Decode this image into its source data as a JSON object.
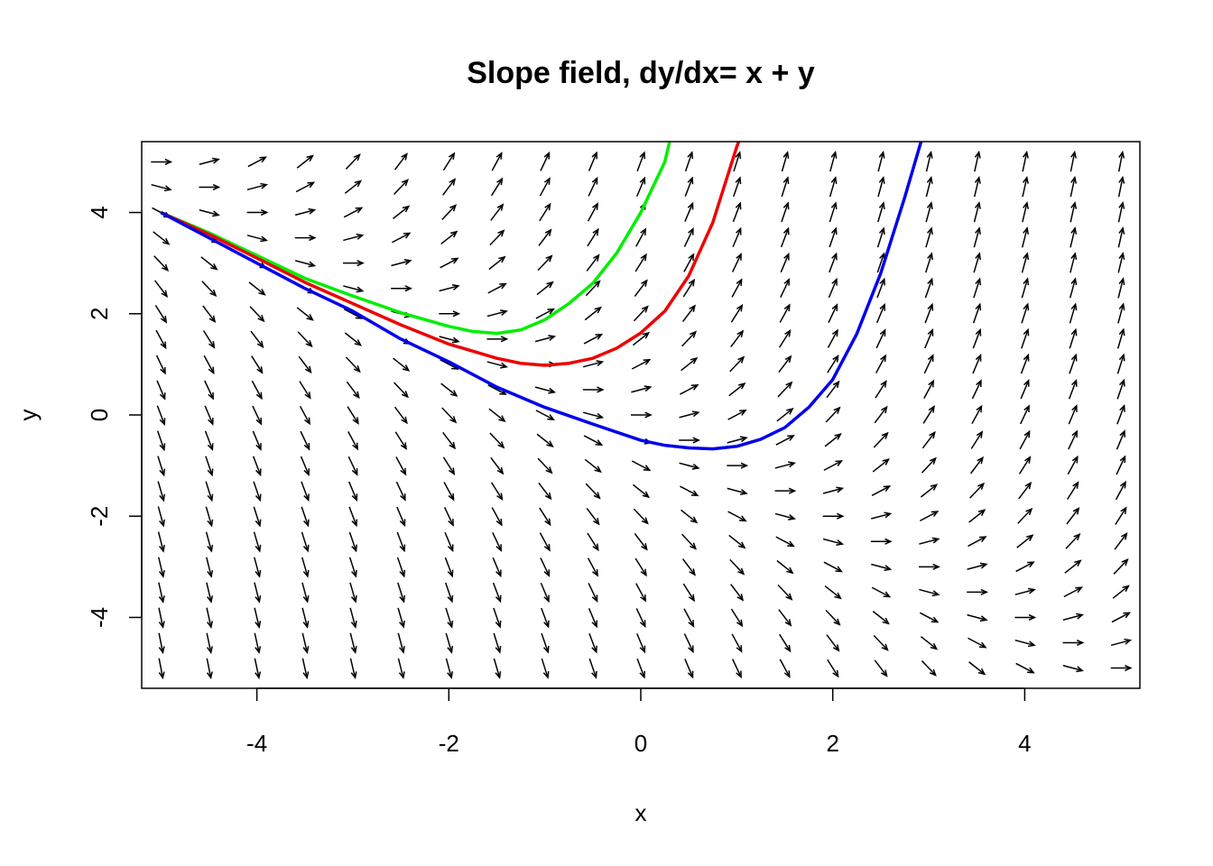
{
  "chart_data": {
    "type": "line",
    "title": "Slope field, dy/dx= x + y",
    "xlabel": "x",
    "ylabel": "y",
    "xlim": [
      -5.2,
      5.2
    ],
    "ylim": [
      -5.4,
      5.4
    ],
    "xticks": [
      -4,
      -2,
      0,
      2,
      4
    ],
    "yticks": [
      -4,
      -2,
      0,
      2,
      4
    ],
    "grid": false,
    "legend": "none",
    "slope_field": {
      "equation": "dy/dx = x + y",
      "x_from": -5,
      "x_to": 5,
      "x_step": 0.5,
      "y_from": -5,
      "y_to": 5,
      "y_step": 0.5,
      "color": "#000000"
    },
    "series": [
      {
        "color": "#00ee00",
        "x": [
          -5,
          -4.5,
          -4,
          -3.5,
          -3,
          -2.5,
          -2,
          -1.75,
          -1.5,
          -1.25,
          -1,
          -0.75,
          -0.5,
          -0.25,
          0,
          0.25,
          0.3
        ],
        "y": [
          4.0,
          3.6,
          3.15,
          2.7,
          2.35,
          2.02,
          1.75,
          1.65,
          1.61,
          1.68,
          1.88,
          2.2,
          2.6,
          3.2,
          4.0,
          5.0,
          5.4
        ]
      },
      {
        "color": "#ee0000",
        "x": [
          -5,
          -4.5,
          -4,
          -3.5,
          -3,
          -2.5,
          -2,
          -1.5,
          -1.25,
          -1,
          -0.75,
          -0.5,
          -0.25,
          0,
          0.25,
          0.5,
          0.75,
          1,
          1.02
        ],
        "y": [
          4.0,
          3.57,
          3.1,
          2.62,
          2.2,
          1.78,
          1.4,
          1.12,
          1.02,
          0.98,
          1.02,
          1.12,
          1.32,
          1.62,
          2.05,
          2.75,
          3.8,
          5.3,
          5.4
        ]
      },
      {
        "color": "#0000ee",
        "x": [
          -5,
          -4.5,
          -4,
          -3.5,
          -3,
          -2.5,
          -2,
          -1.5,
          -1,
          -0.5,
          0,
          0.25,
          0.5,
          0.75,
          1,
          1.25,
          1.5,
          1.75,
          2,
          2.25,
          2.5,
          2.75,
          2.92
        ],
        "y": [
          4.0,
          3.5,
          3.0,
          2.5,
          2.05,
          1.5,
          1.05,
          0.55,
          0.15,
          -0.18,
          -0.5,
          -0.6,
          -0.65,
          -0.67,
          -0.62,
          -0.48,
          -0.25,
          0.15,
          0.7,
          1.6,
          2.8,
          4.3,
          5.4
        ]
      }
    ]
  }
}
